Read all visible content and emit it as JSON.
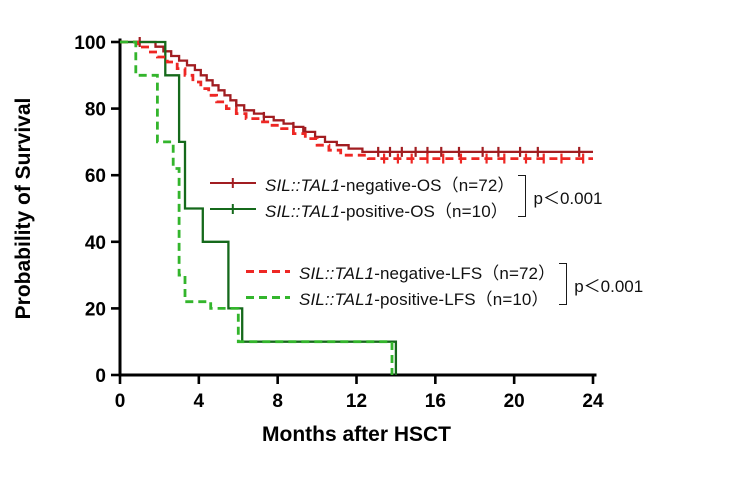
{
  "legend": {
    "os": {
      "rows": [
        {
          "gene": "SIL::TAL1",
          "suffix": "-negative-OS（n=72）",
          "series_index": 0
        },
        {
          "gene": "SIL::TAL1",
          "suffix": "-positive-OS（n=10）",
          "series_index": 1
        }
      ],
      "p_value": "p＜0.001"
    },
    "lfs": {
      "rows": [
        {
          "gene": "SIL::TAL1",
          "suffix": "-negative-LFS（n=72）",
          "series_index": 2
        },
        {
          "gene": "SIL::TAL1",
          "suffix": "-positive-LFS（n=10）",
          "series_index": 3
        }
      ],
      "p_value": "p＜0.001"
    }
  },
  "chart_data": {
    "type": "line",
    "subtype": "kaplan-meier-step",
    "title": "",
    "xlabel": "Months after HSCT",
    "ylabel": "Probability of Survival",
    "xlim": [
      0,
      24
    ],
    "ylim": [
      0,
      100
    ],
    "xticks": [
      0,
      4,
      8,
      12,
      16,
      20,
      24
    ],
    "yticks": [
      0,
      20,
      40,
      60,
      80,
      100
    ],
    "grid": false,
    "legend_position": "inside-plot",
    "series": [
      {
        "name": "SIL::TAL1-negative-OS (n=72)",
        "color": "#a11d21",
        "style": "solid",
        "points": [
          [
            0,
            100
          ],
          [
            1.8,
            98.6
          ],
          [
            2.2,
            97.2
          ],
          [
            2.6,
            95.8
          ],
          [
            3.0,
            94.4
          ],
          [
            3.4,
            93
          ],
          [
            3.8,
            91.6
          ],
          [
            4.1,
            90
          ],
          [
            4.4,
            88.5
          ],
          [
            4.7,
            87
          ],
          [
            5.0,
            85.5
          ],
          [
            5.3,
            84
          ],
          [
            5.6,
            82.5
          ],
          [
            5.9,
            81
          ],
          [
            6.3,
            79.5
          ],
          [
            6.8,
            78.5
          ],
          [
            7.3,
            77.5
          ],
          [
            7.8,
            76.5
          ],
          [
            8.3,
            75.5
          ],
          [
            8.8,
            74.5
          ],
          [
            9.3,
            73
          ],
          [
            9.9,
            71.5
          ],
          [
            10.4,
            70
          ],
          [
            11.0,
            69
          ],
          [
            11.6,
            68
          ],
          [
            12.3,
            67
          ],
          [
            24,
            67
          ]
        ],
        "censor_marks": [
          [
            1.0,
            100
          ],
          [
            5.9,
            81
          ],
          [
            7.3,
            77.5
          ],
          [
            8.8,
            74.5
          ],
          [
            9.4,
            73
          ],
          [
            13.1,
            67
          ],
          [
            13.7,
            67
          ],
          [
            14.3,
            67
          ],
          [
            15.0,
            67
          ],
          [
            15.6,
            67
          ],
          [
            16.3,
            67
          ],
          [
            17.2,
            67
          ],
          [
            18.4,
            67
          ],
          [
            19.2,
            67
          ],
          [
            20.3,
            67
          ],
          [
            21.2,
            67
          ],
          [
            23.3,
            67
          ]
        ]
      },
      {
        "name": "SIL::TAL1-positive-OS (n=10)",
        "color": "#15691b",
        "style": "solid",
        "points": [
          [
            0,
            100
          ],
          [
            2.3,
            90
          ],
          [
            3.0,
            70
          ],
          [
            3.3,
            50
          ],
          [
            4.2,
            40
          ],
          [
            5.5,
            20
          ],
          [
            6.2,
            10
          ],
          [
            14,
            10
          ],
          [
            14,
            0
          ]
        ],
        "censor_marks": []
      },
      {
        "name": "SIL::TAL1-negative-LFS (n=72)",
        "color": "#ee2724",
        "style": "dashed",
        "points": [
          [
            0,
            100
          ],
          [
            0.9,
            98.5
          ],
          [
            1.4,
            97
          ],
          [
            1.9,
            95.5
          ],
          [
            2.4,
            94
          ],
          [
            2.9,
            92
          ],
          [
            3.3,
            90
          ],
          [
            3.7,
            88
          ],
          [
            4.1,
            86
          ],
          [
            4.5,
            84
          ],
          [
            4.9,
            82
          ],
          [
            5.4,
            80
          ],
          [
            5.9,
            78.5
          ],
          [
            6.4,
            77
          ],
          [
            7.0,
            76
          ],
          [
            7.6,
            75
          ],
          [
            8.2,
            74
          ],
          [
            8.8,
            72.5
          ],
          [
            9.4,
            71
          ],
          [
            10.0,
            69
          ],
          [
            10.6,
            67.5
          ],
          [
            11.2,
            66
          ],
          [
            12.6,
            65
          ],
          [
            24,
            65
          ]
        ],
        "censor_marks": [
          [
            13.4,
            65
          ],
          [
            14.1,
            65
          ],
          [
            14.8,
            65
          ],
          [
            15.6,
            65
          ],
          [
            16.4,
            65
          ],
          [
            17.3,
            65
          ],
          [
            18.6,
            65
          ],
          [
            19.5,
            65
          ],
          [
            20.6,
            65
          ],
          [
            21.5,
            65
          ],
          [
            22.4,
            65
          ],
          [
            23.5,
            65
          ]
        ]
      },
      {
        "name": "SIL::TAL1-positive-LFS (n=10)",
        "color": "#33b52c",
        "style": "dashed",
        "points": [
          [
            0,
            100
          ],
          [
            0.8,
            90
          ],
          [
            1.9,
            70
          ],
          [
            2.7,
            62
          ],
          [
            3.0,
            30
          ],
          [
            3.3,
            22
          ],
          [
            4.6,
            20
          ],
          [
            6.0,
            10
          ],
          [
            13.8,
            10
          ],
          [
            13.8,
            0
          ]
        ],
        "censor_marks": []
      }
    ]
  }
}
